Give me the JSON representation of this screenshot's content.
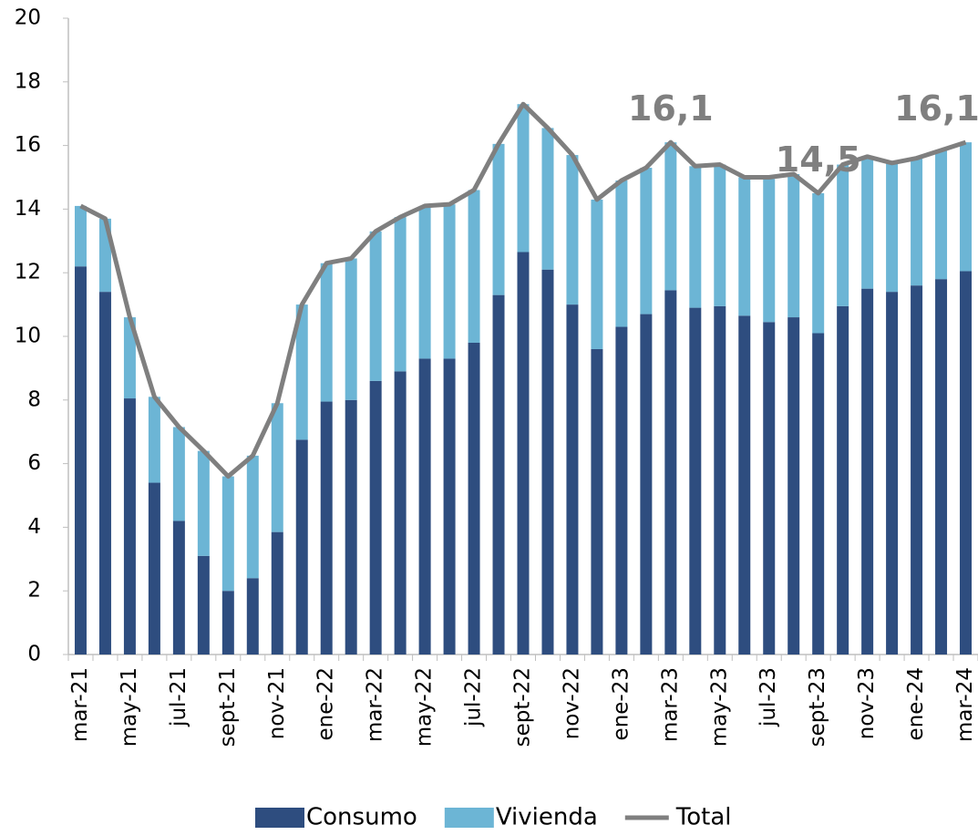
{
  "chart_data": {
    "type": "bar",
    "stacked": true,
    "categories": [
      "mar-21",
      null,
      "may-21",
      null,
      "jul-21",
      null,
      "sept-21",
      null,
      "nov-21",
      null,
      "ene-22",
      null,
      "mar-22",
      null,
      "may-22",
      null,
      "jul-22",
      null,
      "sept-22",
      null,
      "nov-22",
      null,
      "ene-23",
      null,
      "mar-23",
      null,
      "may-23",
      null,
      "jul-23",
      null,
      "sept-23",
      null,
      "nov-23",
      null,
      "ene-24",
      null,
      "mar-24"
    ],
    "series": [
      {
        "name": "Consumo",
        "color": "#2e4d7f",
        "type": "bar",
        "values": [
          12.2,
          11.4,
          8.05,
          5.4,
          4.2,
          3.1,
          2.0,
          2.4,
          3.85,
          6.75,
          7.95,
          8.0,
          8.6,
          8.9,
          9.3,
          9.3,
          9.8,
          11.3,
          12.65,
          12.1,
          11.0,
          9.6,
          10.3,
          10.7,
          11.45,
          10.9,
          10.95,
          10.65,
          10.45,
          10.6,
          10.1,
          10.95,
          11.5,
          11.4,
          11.6,
          11.8,
          12.05
        ]
      },
      {
        "name": "Vivienda",
        "color": "#6cb5d5",
        "type": "bar",
        "values": [
          1.9,
          2.3,
          2.55,
          2.7,
          2.95,
          3.3,
          3.6,
          3.85,
          4.05,
          4.25,
          4.35,
          4.45,
          4.7,
          4.85,
          4.8,
          4.85,
          4.8,
          4.75,
          4.65,
          4.45,
          4.7,
          4.7,
          4.6,
          4.6,
          4.65,
          4.45,
          4.45,
          4.35,
          4.5,
          4.5,
          4.4,
          4.45,
          4.15,
          4.05,
          4.0,
          4.05,
          4.05
        ]
      },
      {
        "name": "Total",
        "color": "#7f7f7f",
        "type": "line",
        "values": [
          14.1,
          13.7,
          10.6,
          8.1,
          7.15,
          6.4,
          5.6,
          6.25,
          7.9,
          11.0,
          12.3,
          12.45,
          13.3,
          13.75,
          14.1,
          14.15,
          14.6,
          16.05,
          17.3,
          16.55,
          15.7,
          14.3,
          14.9,
          15.3,
          16.1,
          15.35,
          15.4,
          15.0,
          15.0,
          15.1,
          14.5,
          15.4,
          15.65,
          15.45,
          15.6,
          15.85,
          16.1
        ],
        "value_labels": [
          null,
          null,
          null,
          null,
          null,
          null,
          null,
          null,
          null,
          null,
          null,
          null,
          null,
          null,
          null,
          null,
          null,
          null,
          null,
          null,
          null,
          null,
          null,
          null,
          "16,1",
          null,
          null,
          null,
          null,
          null,
          "14,5",
          null,
          null,
          null,
          null,
          null,
          "16,1"
        ]
      }
    ],
    "ylim": [
      0,
      20
    ],
    "yticks": [
      0,
      2,
      4,
      6,
      8,
      10,
      12,
      14,
      16,
      18,
      20
    ],
    "grid": false,
    "legend": "bottom"
  }
}
